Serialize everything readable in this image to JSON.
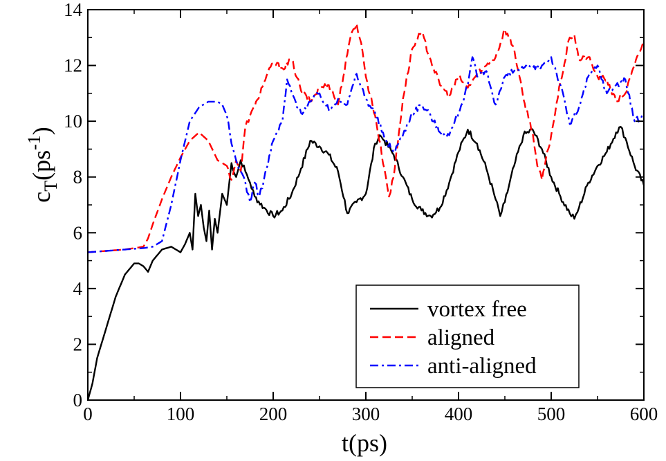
{
  "chart_data": {
    "type": "line",
    "xlabel": "t(ps)",
    "ylabel": {
      "main": "c",
      "subscript": "T",
      "unit_open": "(ps",
      "superscript": "-1",
      "unit_close": ")"
    },
    "xlim": [
      0,
      600
    ],
    "ylim": [
      0,
      14
    ],
    "xticks": [
      "0",
      "100",
      "200",
      "300",
      "400",
      "500",
      "600"
    ],
    "yticks": [
      "0",
      "2",
      "4",
      "6",
      "8",
      "10",
      "12",
      "14"
    ],
    "grid": false,
    "legend": "bottom-right",
    "series": [
      {
        "name": "vortex free",
        "color": "#000000",
        "dash": "solid",
        "x": [
          0,
          5,
          10,
          20,
          30,
          40,
          50,
          55,
          60,
          65,
          70,
          80,
          90,
          100,
          105,
          110,
          113,
          116,
          119,
          122,
          125,
          128,
          131,
          134,
          137,
          140,
          145,
          150,
          155,
          160,
          165,
          170,
          175,
          180,
          190,
          200,
          210,
          220,
          230,
          240,
          250,
          260,
          270,
          280,
          290,
          300,
          310,
          315,
          320,
          330,
          340,
          350,
          360,
          370,
          380,
          390,
          400,
          410,
          420,
          430,
          440,
          445,
          450,
          460,
          470,
          480,
          490,
          500,
          510,
          520,
          525,
          530,
          540,
          550,
          560,
          570,
          575,
          580,
          590,
          600
        ],
        "y": [
          0,
          0.6,
          1.5,
          2.6,
          3.7,
          4.5,
          4.9,
          4.9,
          4.8,
          4.6,
          5.0,
          5.4,
          5.5,
          5.3,
          5.6,
          6.0,
          5.4,
          7.4,
          6.6,
          7.0,
          6.2,
          5.7,
          6.8,
          5.4,
          6.5,
          6.0,
          7.4,
          7.0,
          8.5,
          8.0,
          8.6,
          8.2,
          7.8,
          7.3,
          6.9,
          6.6,
          6.8,
          7.4,
          8.3,
          9.3,
          9.1,
          8.8,
          8.2,
          6.7,
          7.1,
          7.4,
          9.2,
          9.5,
          9.3,
          8.8,
          8.0,
          7.2,
          6.8,
          6.6,
          6.9,
          7.8,
          8.9,
          9.7,
          9.2,
          8.3,
          7.2,
          6.6,
          7.1,
          8.4,
          9.5,
          9.7,
          9.0,
          8.0,
          7.3,
          6.7,
          6.5,
          6.9,
          7.8,
          8.4,
          8.9,
          9.6,
          9.8,
          9.4,
          8.4,
          7.7
        ]
      },
      {
        "name": "aligned",
        "color": "#ff0000",
        "dash": "dashed",
        "x": [
          0,
          20,
          40,
          60,
          65,
          70,
          80,
          90,
          100,
          110,
          120,
          130,
          140,
          150,
          155,
          160,
          165,
          170,
          175,
          180,
          190,
          200,
          210,
          220,
          230,
          240,
          250,
          260,
          270,
          280,
          285,
          290,
          295,
          300,
          310,
          320,
          325,
          330,
          340,
          350,
          360,
          370,
          380,
          390,
          400,
          410,
          420,
          430,
          440,
          450,
          460,
          470,
          480,
          485,
          490,
          500,
          510,
          520,
          525,
          530,
          540,
          550,
          560,
          570,
          580,
          590,
          600
        ],
        "y": [
          5.3,
          5.35,
          5.4,
          5.5,
          5.8,
          6.3,
          7.2,
          8.0,
          8.7,
          9.3,
          9.6,
          9.3,
          8.6,
          8.4,
          7.9,
          8.6,
          8.2,
          9.8,
          10.2,
          10.5,
          11.4,
          12.1,
          11.9,
          12.2,
          11.1,
          10.7,
          11.2,
          11.3,
          10.6,
          12.4,
          13.2,
          13.5,
          12.8,
          11.6,
          10.2,
          8.3,
          7.3,
          8.0,
          10.8,
          12.6,
          13.2,
          12.2,
          11.3,
          10.9,
          11.6,
          11.2,
          11.7,
          12.0,
          12.3,
          13.3,
          12.6,
          10.8,
          9.6,
          8.4,
          7.9,
          9.5,
          11.4,
          13.0,
          13.1,
          12.2,
          12.3,
          11.6,
          11.5,
          10.7,
          11.0,
          12.0,
          12.9
        ]
      },
      {
        "name": "anti-aligned",
        "color": "#0000ff",
        "dash": "dashdot",
        "x": [
          0,
          20,
          40,
          60,
          70,
          80,
          90,
          100,
          110,
          120,
          130,
          140,
          145,
          150,
          155,
          160,
          165,
          170,
          175,
          180,
          185,
          190,
          200,
          210,
          215,
          220,
          230,
          240,
          250,
          260,
          270,
          280,
          290,
          300,
          310,
          320,
          330,
          340,
          350,
          360,
          370,
          380,
          390,
          400,
          410,
          415,
          420,
          430,
          440,
          450,
          460,
          470,
          480,
          490,
          500,
          510,
          520,
          530,
          540,
          550,
          560,
          570,
          580,
          590,
          600
        ],
        "y": [
          5.3,
          5.35,
          5.4,
          5.45,
          5.5,
          5.7,
          7.0,
          8.6,
          10.0,
          10.5,
          10.7,
          10.7,
          10.6,
          10.2,
          9.2,
          8.6,
          8.2,
          7.8,
          7.1,
          7.8,
          7.3,
          7.9,
          9.3,
          10.0,
          11.5,
          11.0,
          10.3,
          10.7,
          11.0,
          10.4,
          10.8,
          10.6,
          11.7,
          10.8,
          10.3,
          9.4,
          8.9,
          9.5,
          10.3,
          10.6,
          10.2,
          9.6,
          9.5,
          10.3,
          11.3,
          12.3,
          11.6,
          11.8,
          10.6,
          11.6,
          11.8,
          11.9,
          11.9,
          12.0,
          12.3,
          11.3,
          9.9,
          10.5,
          11.6,
          12.0,
          11.0,
          11.3,
          11.5,
          10.0,
          10.2
        ]
      }
    ]
  }
}
